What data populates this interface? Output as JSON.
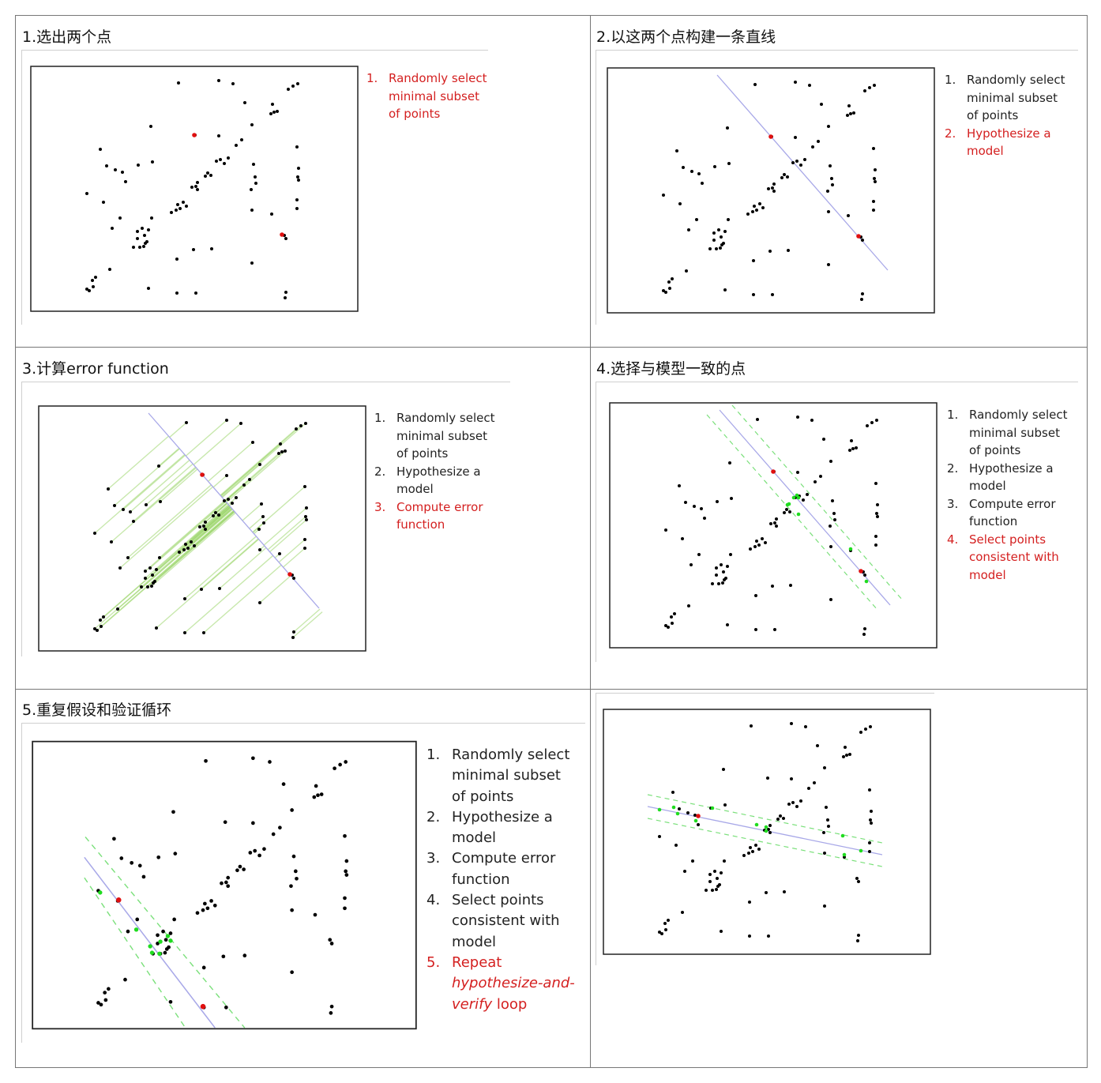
{
  "colors": {
    "active": "#d42020",
    "dot": "#000000",
    "red_dot": "#e01010",
    "line": "#a8a8e8",
    "inlier": "#1fdc1f",
    "band": "#7be07b",
    "error": "#9ad66a"
  },
  "panels": [
    {
      "title": "1.选出两个点",
      "steps": [
        {
          "num": "1.",
          "lines": [
            "Randomly select",
            "minimal subset",
            "of points"
          ]
        }
      ]
    },
    {
      "title": "2.以这两个点构建一条直线",
      "steps": [
        {
          "num": "1.",
          "lines": [
            "Randomly select",
            "minimal subset",
            "of points"
          ]
        },
        {
          "num": "2.",
          "lines": [
            "Hypothesize a",
            "model"
          ]
        }
      ]
    },
    {
      "title": "3.计算error function",
      "steps": [
        {
          "num": "1.",
          "lines": [
            "Randomly select",
            "minimal subset",
            "of points"
          ]
        },
        {
          "num": "2.",
          "lines": [
            "Hypothesize a",
            "model"
          ]
        },
        {
          "num": "3.",
          "lines": [
            "Compute error",
            "function"
          ]
        }
      ]
    },
    {
      "title": "4.选择与模型一致的点",
      "steps": [
        {
          "num": "1.",
          "lines": [
            "Randomly select",
            "minimal subset",
            "of points"
          ]
        },
        {
          "num": "2.",
          "lines": [
            "Hypothesize a",
            "model"
          ]
        },
        {
          "num": "3.",
          "lines": [
            "Compute error",
            "function"
          ]
        },
        {
          "num": "4.",
          "lines": [
            "Select points",
            "consistent with",
            "model"
          ]
        }
      ]
    },
    {
      "title": "5.重复假设和验证循环",
      "steps": [
        {
          "num": "1.",
          "lines": [
            "Randomly select",
            "minimal subset",
            "of points"
          ]
        },
        {
          "num": "2.",
          "lines": [
            "Hypothesize a",
            "model"
          ]
        },
        {
          "num": "3.",
          "lines": [
            "Compute error",
            "function"
          ]
        },
        {
          "num": "4.",
          "lines": [
            "Select points",
            "consistent with",
            "model"
          ]
        },
        {
          "num": "5.",
          "lines": [
            "Repeat",
            "hypothesize-and-",
            "verify loop"
          ]
        }
      ]
    },
    {
      "title": "",
      "steps": []
    }
  ]
}
